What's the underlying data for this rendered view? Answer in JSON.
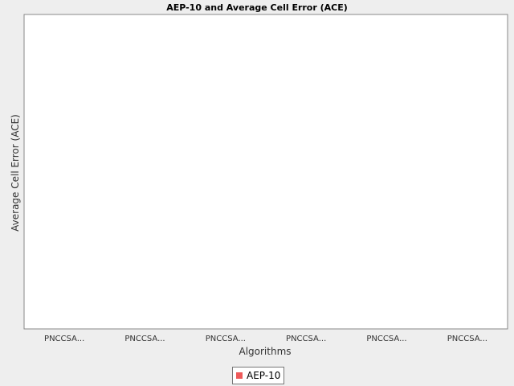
{
  "chart_data": {
    "type": "bar",
    "title": "AEP-10 and Average Cell Error (ACE)",
    "xlabel": "Algorithms",
    "ylabel": "Average Cell Error (ACE)",
    "categories": [
      "PNCCSA...",
      "PNCCSA...",
      "PNCCSA...",
      "PNCCSA...",
      "PNCCSA...",
      "PNCCSA..."
    ],
    "series": [
      {
        "name": "AEP-10",
        "color": "#ee5a5a",
        "values": [
          null,
          null,
          null,
          null,
          null,
          null
        ]
      }
    ],
    "grid": false,
    "legend_position": "bottom"
  }
}
